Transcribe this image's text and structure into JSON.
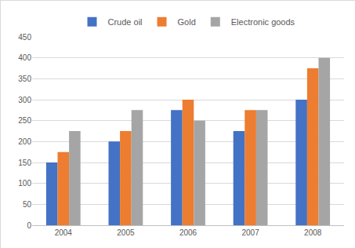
{
  "chart_data": {
    "type": "bar",
    "categories": [
      "2004",
      "2005",
      "2006",
      "2007",
      "2008"
    ],
    "series": [
      {
        "name": "Crude oil",
        "color": "#4472c4",
        "values": [
          150,
          200,
          275,
          225,
          300
        ]
      },
      {
        "name": "Gold",
        "color": "#ed7d31",
        "values": [
          175,
          225,
          300,
          275,
          375
        ]
      },
      {
        "name": "Electronic goods",
        "color": "#a5a5a5",
        "values": [
          225,
          275,
          250,
          275,
          400
        ]
      }
    ],
    "ylim": [
      0,
      450
    ],
    "yticks": [
      0,
      50,
      100,
      150,
      200,
      250,
      300,
      350,
      400,
      450
    ],
    "grid": true,
    "legend": "top"
  }
}
